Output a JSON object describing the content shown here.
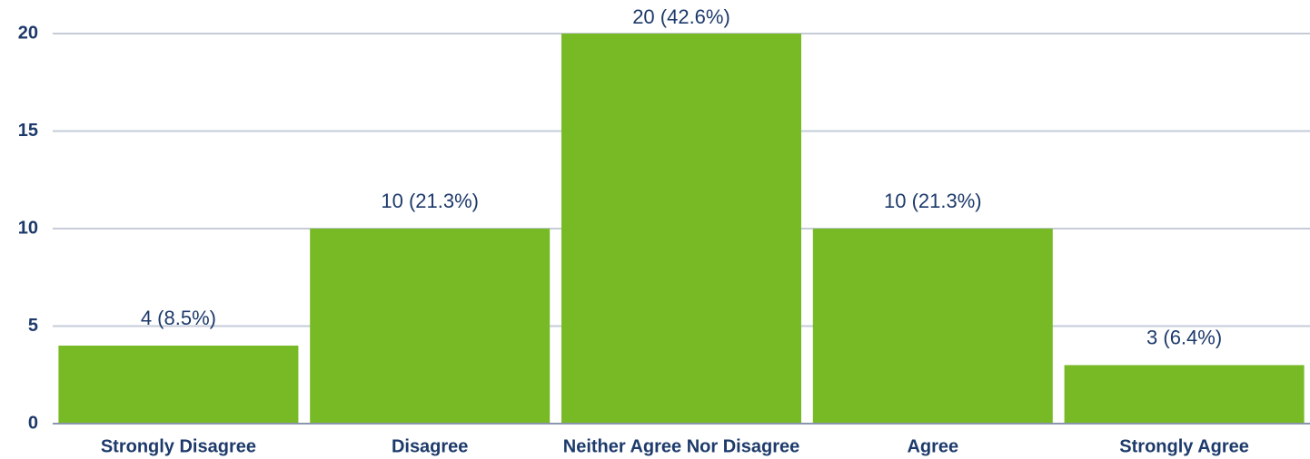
{
  "chart_data": {
    "type": "bar",
    "categories": [
      "Strongly Disagree",
      "Disagree",
      "Neither Agree Nor Disagree",
      "Agree",
      "Strongly Agree"
    ],
    "values": [
      4,
      10,
      20,
      10,
      3
    ],
    "value_labels": [
      "4 (8.5%)",
      "10 (21.3%)",
      "20 (42.6%)",
      "10 (21.3%)",
      "3 (6.4%)"
    ],
    "color": "#78b926",
    "ylim": [
      0,
      20
    ],
    "yticks": [
      0,
      5,
      10,
      15,
      20
    ],
    "grid": true
  }
}
